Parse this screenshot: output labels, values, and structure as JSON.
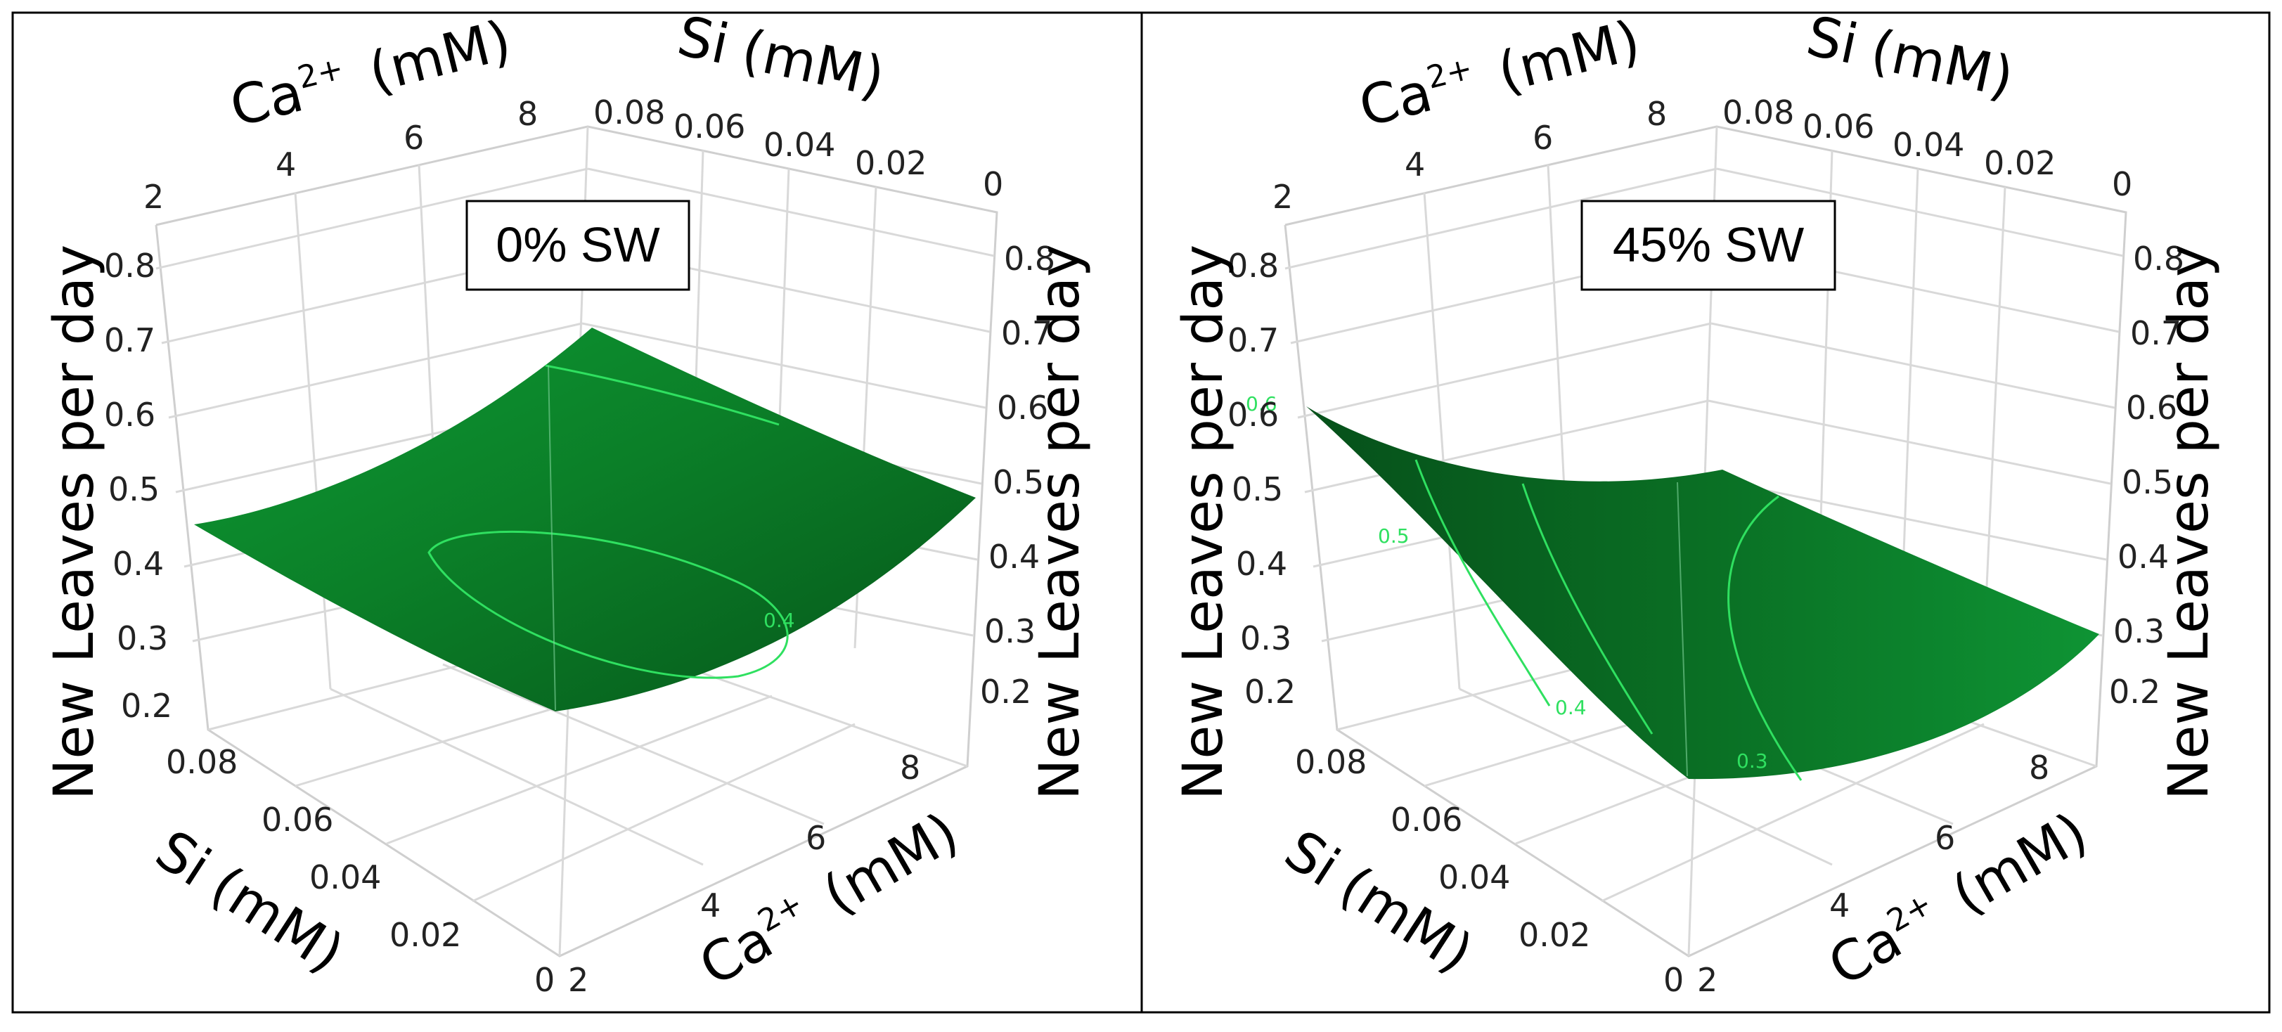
{
  "chart_data": [
    {
      "type": "surface3d",
      "panel_label": "0% SW",
      "z_label": "New Leaves per day",
      "x_label": {
        "base": "Si",
        "unit": "(mM)"
      },
      "y_label": {
        "base": "Ca",
        "sup": "2+",
        "unit": "(mM)"
      },
      "z_ticks": [
        "0.8",
        "0.7",
        "0.6",
        "0.5",
        "0.4",
        "0.3",
        "0.2"
      ],
      "si_ticks_front": [
        "0.08",
        "0.06",
        "0.04",
        "0.02",
        "0"
      ],
      "ca_ticks_front": [
        "2",
        "4",
        "6",
        "8"
      ],
      "si_ticks_back": [
        "0.08",
        "0.06",
        "0.04",
        "0.02",
        "0"
      ],
      "ca_ticks_back": [
        "2",
        "4",
        "6",
        "8"
      ],
      "zlim": [
        0.2,
        0.8
      ],
      "si_range": [
        0,
        0.08
      ],
      "ca_range": [
        2,
        8
      ],
      "corner_values": [
        {
          "si": 0.08,
          "ca": 2,
          "z": 0.43
        },
        {
          "si": 0.08,
          "ca": 8,
          "z": 0.72
        },
        {
          "si": 0,
          "ca": 8,
          "z": 0.47
        },
        {
          "si": 0,
          "ca": 2,
          "z": 0.39
        }
      ],
      "contours": [
        {
          "value": "0.4"
        }
      ],
      "surface_color": "#0a8a2a"
    },
    {
      "type": "surface3d",
      "panel_label": "45% SW",
      "z_label": "New Leaves per day",
      "x_label": {
        "base": "Si",
        "unit": "(mM)"
      },
      "y_label": {
        "base": "Ca",
        "sup": "2+",
        "unit": "(mM)"
      },
      "z_ticks": [
        "0.8",
        "0.7",
        "0.6",
        "0.5",
        "0.4",
        "0.3",
        "0.2"
      ],
      "si_ticks_front": [
        "0.08",
        "0.06",
        "0.04",
        "0.02",
        "0"
      ],
      "ca_ticks_front": [
        "2",
        "4",
        "6",
        "8"
      ],
      "si_ticks_back": [
        "0.08",
        "0.06",
        "0.04",
        "0.02",
        "0"
      ],
      "ca_ticks_back": [
        "2",
        "4",
        "6",
        "8"
      ],
      "zlim": [
        0.2,
        0.8
      ],
      "si_range": [
        0,
        0.08
      ],
      "ca_range": [
        2,
        8
      ],
      "corner_values": [
        {
          "si": 0.08,
          "ca": 2,
          "z": 0.6
        },
        {
          "si": 0.08,
          "ca": 8,
          "z": 0.51
        },
        {
          "si": 0,
          "ca": 8,
          "z": 0.29
        },
        {
          "si": 0,
          "ca": 2,
          "z": 0.3
        }
      ],
      "contours": [
        {
          "value": "0.6"
        },
        {
          "value": "0.5"
        },
        {
          "value": "0.4"
        },
        {
          "value": "0.3"
        }
      ],
      "surface_color": "#0a7a25"
    }
  ]
}
